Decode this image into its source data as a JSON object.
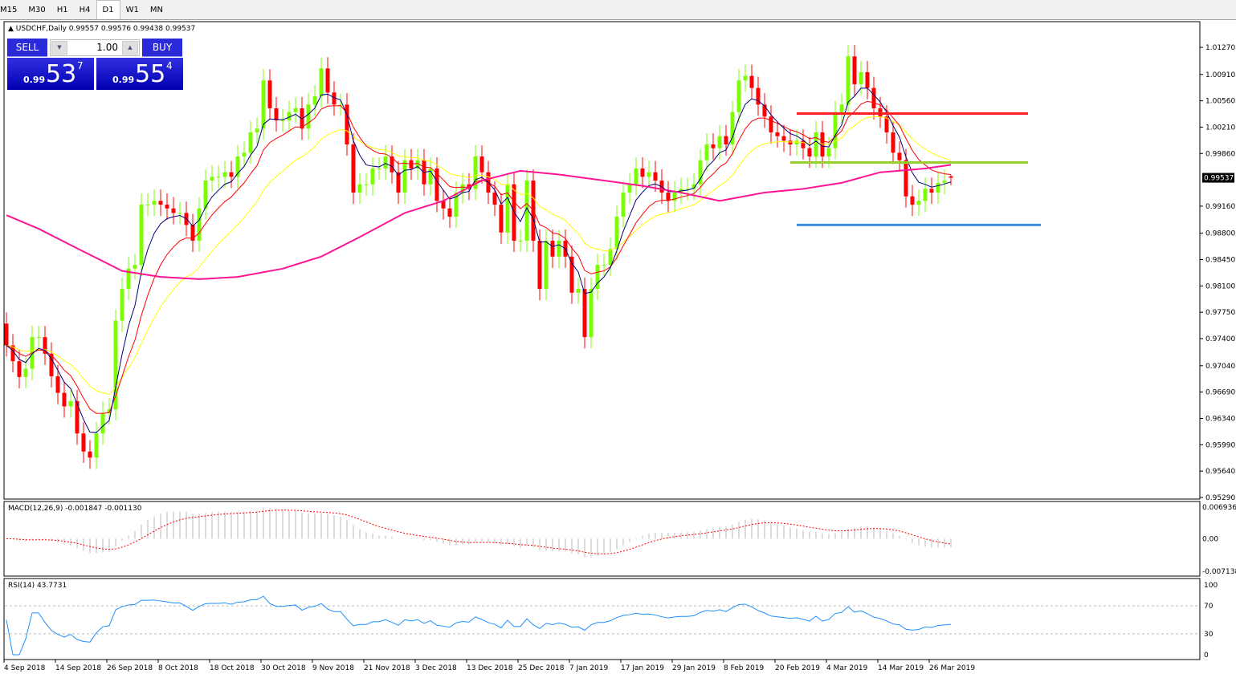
{
  "toolbar": {
    "timeframes": [
      "M15",
      "M30",
      "H1",
      "H4",
      "D1",
      "W1",
      "MN"
    ],
    "active": "D1"
  },
  "header": {
    "symbol": "USDCHF,Daily",
    "ohlc": "0.99557 0.99576 0.99438 0.99537"
  },
  "trade_panel": {
    "sell_label": "SELL",
    "buy_label": "BUY",
    "lot": "1.00",
    "sell_prefix": "0.99",
    "sell_big": "53",
    "sell_pip": "7",
    "buy_prefix": "0.99",
    "buy_big": "55",
    "buy_pip": "4"
  },
  "chart_data": {
    "type": "candlestick",
    "symbol": "USDCHF",
    "timeframe": "Daily",
    "ylim": [
      0.9529,
      1.0145
    ],
    "y_ticks": [
      "1.01270",
      "1.00910",
      "1.00560",
      "1.00210",
      "0.99860",
      "0.99160",
      "0.98800",
      "0.98450",
      "0.98100",
      "0.97750",
      "0.97400",
      "0.97040",
      "0.96690",
      "0.96340",
      "0.95990",
      "0.95640",
      "0.95290"
    ],
    "current_price": "0.99537",
    "x_ticks": [
      {
        "i": 0,
        "label": "4 Sep 2018"
      },
      {
        "i": 8,
        "label": "14 Sep 2018"
      },
      {
        "i": 16,
        "label": "26 Sep 2018"
      },
      {
        "i": 24,
        "label": "8 Oct 2018"
      },
      {
        "i": 32,
        "label": "18 Oct 2018"
      },
      {
        "i": 40,
        "label": "30 Oct 2018"
      },
      {
        "i": 48,
        "label": "9 Nov 2018"
      },
      {
        "i": 56,
        "label": "21 Nov 2018"
      },
      {
        "i": 64,
        "label": "3 Dec 2018"
      },
      {
        "i": 72,
        "label": "13 Dec 2018"
      },
      {
        "i": 80,
        "label": "25 Dec 2018"
      },
      {
        "i": 88,
        "label": "7 Jan 2019"
      },
      {
        "i": 96,
        "label": "17 Jan 2019"
      },
      {
        "i": 104,
        "label": "29 Jan 2019"
      },
      {
        "i": 112,
        "label": "8 Feb 2019"
      },
      {
        "i": 120,
        "label": "20 Feb 2019"
      },
      {
        "i": 128,
        "label": "4 Mar 2019"
      },
      {
        "i": 136,
        "label": "14 Mar 2019"
      },
      {
        "i": 144,
        "label": "26 Mar 2019"
      }
    ],
    "closes": [
      0.9731,
      0.971,
      0.9689,
      0.97,
      0.9742,
      0.9742,
      0.972,
      0.969,
      0.9668,
      0.965,
      0.9657,
      0.9614,
      0.959,
      0.9582,
      0.9614,
      0.9641,
      0.9646,
      0.9764,
      0.9806,
      0.9833,
      0.9838,
      0.9918,
      0.9918,
      0.9923,
      0.9918,
      0.9913,
      0.9907,
      0.9907,
      0.9891,
      0.987,
      0.9913,
      0.995,
      0.9955,
      0.9955,
      0.9961,
      0.9955,
      0.9982,
      0.9987,
      1.0014,
      1.0019,
      1.0083,
      1.0046,
      1.003,
      1.003,
      1.0041,
      1.0046,
      1.0019,
      1.0051,
      1.0062,
      1.0099,
      1.0067,
      1.0051,
      1.0051,
      0.9998,
      0.9934,
      0.9945,
      0.9945,
      0.9966,
      0.9966,
      0.9982,
      0.9961,
      0.9934,
      0.9977,
      0.9966,
      0.9977,
      0.9945,
      0.9966,
      0.9923,
      0.9913,
      0.9902,
      0.9934,
      0.9945,
      0.9939,
      0.9982,
      0.9961,
      0.9934,
      0.9918,
      0.9881,
      0.9945,
      0.987,
      0.987,
      0.995,
      0.987,
      0.9806,
      0.987,
      0.9849,
      0.987,
      0.9849,
      0.9801,
      0.9806,
      0.9742,
      0.9806,
      0.9838,
      0.9838,
      0.9859,
      0.9902,
      0.9934,
      0.9945,
      0.9966,
      0.9955,
      0.9961,
      0.995,
      0.9934,
      0.9923,
      0.9934,
      0.9939,
      0.9939,
      0.9945,
      0.9977,
      0.9998,
      0.9993,
      1.0009,
      0.9998,
      1.0041,
      1.0083,
      1.0089,
      1.0073,
      1.0051,
      1.0035,
      1.0014,
      1.0009,
      1.0003,
      0.9998,
      1.0003,
      0.9993,
      0.9982,
      1.0014,
      0.9982,
      0.9993,
      1.0041,
      1.0051,
      1.0115,
      1.0078,
      1.0094,
      1.0073,
      1.0046,
      1.0035,
      1.0014,
      0.9987,
      0.9977,
      0.9929,
      0.9918,
      0.9923,
      0.9939,
      0.9934,
      0.9947,
      0.995,
      0.99537
    ],
    "last_candle": {
      "open": 0.99557,
      "high": 0.99576,
      "low": 0.99438,
      "close": 0.99537
    },
    "slow_ma": [
      [
        0,
        0.9904
      ],
      [
        5,
        0.9886
      ],
      [
        11,
        0.986
      ],
      [
        18,
        0.983
      ],
      [
        24,
        0.9822
      ],
      [
        30,
        0.9819
      ],
      [
        36,
        0.9822
      ],
      [
        43,
        0.9833
      ],
      [
        49,
        0.9849
      ],
      [
        55,
        0.9875
      ],
      [
        62,
        0.9907
      ],
      [
        68,
        0.9923
      ],
      [
        74,
        0.995
      ],
      [
        80,
        0.9963
      ],
      [
        86,
        0.9958
      ],
      [
        93,
        0.995
      ],
      [
        99,
        0.9943
      ],
      [
        105,
        0.9934
      ],
      [
        111,
        0.9923
      ],
      [
        118,
        0.9934
      ],
      [
        124,
        0.9939
      ],
      [
        130,
        0.9947
      ],
      [
        136,
        0.9961
      ],
      [
        143,
        0.9966
      ],
      [
        147,
        0.9971
      ]
    ],
    "colors": {
      "bull": "#7cfc00",
      "bear": "#ff0000",
      "ma_fast": "#000080",
      "ma_mid": "#ff0000",
      "ma_slow_yellow": "#ffff00",
      "ma_slow": "#ff1493"
    },
    "levels": [
      {
        "price": 1.0039,
        "from": 123,
        "to": 159,
        "color": "#ff2020"
      },
      {
        "price": 0.9974,
        "from": 122,
        "to": 159,
        "color": "#9acd32"
      },
      {
        "price": 0.9891,
        "from": 123,
        "to": 161,
        "color": "#3a8ee6"
      }
    ],
    "macd": {
      "label": "MACD(12,26,9) -0.001847 -0.001130",
      "ticks": [
        "0.006936",
        "0.00",
        "-0.007138"
      ],
      "range": [
        -0.007138,
        0.006936
      ]
    },
    "rsi": {
      "label": "RSI(14) 43.7731",
      "ticks": [
        "100",
        "70",
        "30",
        "0"
      ],
      "levels": [
        70,
        30
      ]
    }
  }
}
